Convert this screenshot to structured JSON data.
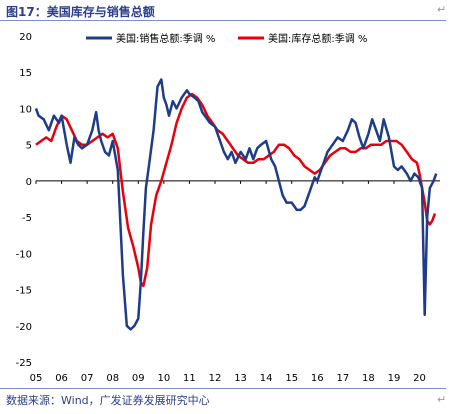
{
  "figure_title": "图17：美国库存与销售总额",
  "source": "数据来源：Wind，广发证券发展研究中心",
  "para_mark": "↵",
  "colors": {
    "sales": "#1f3c88",
    "inventory": "#e8000b",
    "axis": "#000000"
  },
  "chart_data": {
    "type": "line",
    "title": "",
    "xlabel": "",
    "ylabel": "",
    "ylim": [
      -25,
      20
    ],
    "yticks": [
      20,
      15,
      10,
      5,
      0,
      -5,
      -10,
      -15,
      -20,
      -25
    ],
    "xlim": [
      2005,
      2020.8
    ],
    "xticks": [
      "05",
      "06",
      "07",
      "08",
      "09",
      "10",
      "11",
      "12",
      "13",
      "14",
      "15",
      "16",
      "17",
      "18",
      "19",
      "20"
    ],
    "grid": false,
    "legend_position": "top",
    "series": [
      {
        "name": "美国:销售总额:季调 %",
        "color": "#1f3c88",
        "x": [
          2005.0,
          2005.1,
          2005.3,
          2005.5,
          2005.7,
          2005.9,
          2006.0,
          2006.2,
          2006.35,
          2006.5,
          2006.65,
          2006.8,
          2007.0,
          2007.2,
          2007.35,
          2007.45,
          2007.55,
          2007.7,
          2007.85,
          2008.0,
          2008.2,
          2008.4,
          2008.55,
          2008.7,
          2008.85,
          2009.0,
          2009.1,
          2009.2,
          2009.3,
          2009.45,
          2009.6,
          2009.75,
          2009.9,
          2010.0,
          2010.1,
          2010.2,
          2010.35,
          2010.5,
          2010.7,
          2010.9,
          2011.0,
          2011.2,
          2011.35,
          2011.5,
          2011.6,
          2011.8,
          2012.0,
          2012.2,
          2012.35,
          2012.5,
          2012.65,
          2012.8,
          2013.0,
          2013.2,
          2013.35,
          2013.5,
          2013.65,
          2013.8,
          2014.0,
          2014.2,
          2014.35,
          2014.5,
          2014.65,
          2014.8,
          2015.0,
          2015.2,
          2015.35,
          2015.5,
          2015.7,
          2015.9,
          2016.0,
          2016.2,
          2016.4,
          2016.6,
          2016.8,
          2017.0,
          2017.2,
          2017.35,
          2017.5,
          2017.65,
          2017.8,
          2018.0,
          2018.15,
          2018.3,
          2018.45,
          2018.6,
          2018.8,
          2019.0,
          2019.15,
          2019.3,
          2019.5,
          2019.65,
          2019.8,
          2019.95,
          2020.1,
          2020.2,
          2020.3,
          2020.4,
          2020.55,
          2020.65
        ],
        "values": [
          10,
          9,
          8.5,
          7,
          9,
          8,
          9,
          5,
          2.5,
          6,
          5,
          4.5,
          5,
          7,
          9.5,
          7,
          5.5,
          4,
          3.5,
          5.5,
          1.5,
          -13,
          -20,
          -20.5,
          -20,
          -19,
          -14,
          -7,
          -1,
          3,
          7,
          13,
          14,
          11.5,
          10.5,
          9,
          11,
          10,
          11.5,
          12.5,
          12,
          11.5,
          11,
          9.5,
          9,
          8,
          7.5,
          5.5,
          4,
          3,
          4,
          2.5,
          4,
          3,
          4.5,
          3,
          4.5,
          5,
          5.5,
          3,
          2,
          0,
          -2,
          -3,
          -3,
          -4,
          -4,
          -3.5,
          -1.5,
          0.5,
          0,
          2,
          4,
          5,
          6,
          5.5,
          7,
          8.5,
          8,
          6,
          4.5,
          6.5,
          8.5,
          7,
          5.5,
          8.5,
          6,
          2,
          1.5,
          2,
          1,
          0,
          1,
          0.5,
          -1,
          -18.5,
          -5,
          -1,
          0,
          1
        ]
      },
      {
        "name": "美国:库存总额:季调 %",
        "color": "#e8000b",
        "x": [
          2005.0,
          2005.2,
          2005.4,
          2005.6,
          2005.8,
          2006.0,
          2006.2,
          2006.4,
          2006.6,
          2006.8,
          2007.0,
          2007.2,
          2007.4,
          2007.6,
          2007.8,
          2008.0,
          2008.2,
          2008.4,
          2008.6,
          2008.8,
          2009.0,
          2009.1,
          2009.2,
          2009.35,
          2009.5,
          2009.7,
          2009.9,
          2010.1,
          2010.3,
          2010.5,
          2010.7,
          2010.9,
          2011.1,
          2011.3,
          2011.5,
          2011.7,
          2011.9,
          2012.1,
          2012.3,
          2012.5,
          2012.7,
          2012.9,
          2013.1,
          2013.3,
          2013.5,
          2013.7,
          2013.9,
          2014.1,
          2014.3,
          2014.5,
          2014.7,
          2014.9,
          2015.1,
          2015.3,
          2015.5,
          2015.7,
          2015.9,
          2016.1,
          2016.3,
          2016.5,
          2016.7,
          2016.9,
          2017.1,
          2017.3,
          2017.5,
          2017.7,
          2017.9,
          2018.1,
          2018.3,
          2018.5,
          2018.7,
          2018.9,
          2019.1,
          2019.3,
          2019.5,
          2019.7,
          2019.9,
          2020.0,
          2020.1,
          2020.2,
          2020.3,
          2020.4,
          2020.5,
          2020.6
        ],
        "values": [
          5,
          5.5,
          6,
          5.5,
          7.5,
          9,
          8.5,
          7,
          5.5,
          5,
          5,
          5.5,
          6,
          6.5,
          6,
          6.5,
          4.5,
          -1.5,
          -6.5,
          -9,
          -12,
          -14,
          -14.5,
          -12,
          -6,
          -2,
          0,
          2.5,
          5,
          8,
          10,
          11.5,
          12,
          11.5,
          10.5,
          9,
          8,
          7,
          6.5,
          5.5,
          4.5,
          3.5,
          3,
          2.5,
          2.5,
          3,
          3,
          3.5,
          4,
          5,
          5,
          4.5,
          3.5,
          3,
          2,
          1.5,
          1,
          1.5,
          2.5,
          3.5,
          4,
          4.5,
          4.5,
          4,
          4,
          4.5,
          4.5,
          5,
          5,
          5,
          5.5,
          5.5,
          5.5,
          5,
          4,
          3,
          2.5,
          1,
          -1,
          -3,
          -5.5,
          -6,
          -5.5,
          -4.5
        ]
      }
    ]
  }
}
